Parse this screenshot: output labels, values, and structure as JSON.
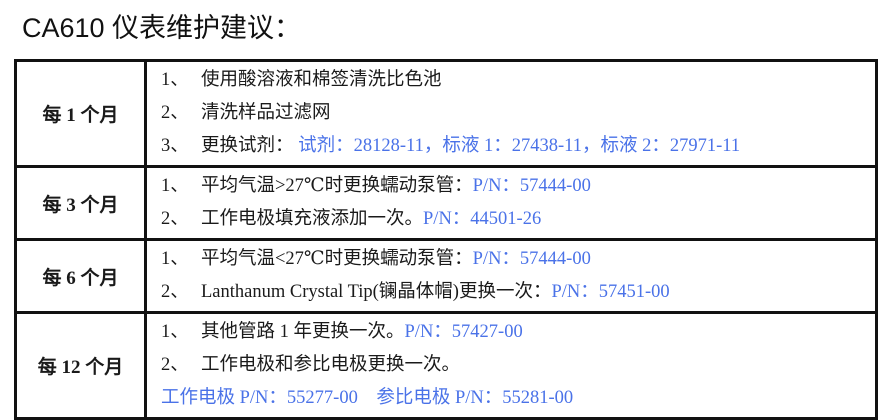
{
  "title": "CA610 仪表维护建议：",
  "accent_color": "#4a72e8",
  "rows": [
    {
      "period": "每 1 个月",
      "items": [
        {
          "num": "1、",
          "text": "使用酸溶液和棉签清洗比色池",
          "pn": ""
        },
        {
          "num": "2、",
          "text": "清洗样品过滤网",
          "pn": ""
        },
        {
          "num": "3、",
          "text": "更换试剂：",
          "pn": " 试剂：28128-11，标液 1：27438-11，标液 2：27971-11"
        }
      ]
    },
    {
      "period": "每 3 个月",
      "items": [
        {
          "num": "1、",
          "text": "平均气温>27℃时更换蠕动泵管：",
          "pn": "P/N：57444-00"
        },
        {
          "num": "2、",
          "text": "工作电极填充液添加一次。",
          "pn": "P/N：44501-26"
        }
      ]
    },
    {
      "period": "每 6 个月",
      "items": [
        {
          "num": "1、",
          "text": "平均气温<27℃时更换蠕动泵管：",
          "pn": "P/N：57444-00"
        },
        {
          "num": "2、",
          "text": "Lanthanum Crystal Tip(镧晶体帽)更换一次：",
          "pn": "P/N：57451-00"
        }
      ]
    },
    {
      "period": "每 12 个月",
      "items": [
        {
          "num": "1、",
          "text": "其他管路 1 年更换一次。",
          "pn": "P/N：57427-00"
        },
        {
          "num": "2、",
          "text": "工作电极和参比电极更换一次。",
          "pn": ""
        },
        {
          "num": "",
          "text": "",
          "pn": "工作电极 P/N：55277-00　参比电极 P/N：55281-00"
        }
      ]
    }
  ]
}
